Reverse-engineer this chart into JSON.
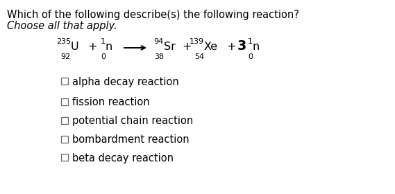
{
  "title_line1": "Which of the following describe(s) the following reaction?",
  "title_line2": "Choose all that apply.",
  "bg_color": "#ffffff",
  "checkbox_options": [
    "alpha decay reaction",
    "fission reaction",
    "potential chain reaction",
    "bombardment reaction",
    "beta decay reaction"
  ],
  "font_size_title": 10.5,
  "font_size_option": 10.5,
  "font_size_eq_main": 11.5,
  "font_size_eq_script": 8.0
}
